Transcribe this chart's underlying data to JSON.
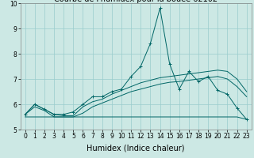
{
  "xlabel": "Humidex (Indice chaleur)",
  "ylabel": "",
  "bg_color": "#cce8e4",
  "line_color": "#006666",
  "grid_color": "#99cccc",
  "xlim": [
    -0.5,
    23.5
  ],
  "ylim": [
    5,
    10
  ],
  "yticks": [
    5,
    6,
    7,
    8,
    9,
    10
  ],
  "xticks": [
    0,
    1,
    2,
    3,
    4,
    5,
    6,
    7,
    8,
    9,
    10,
    11,
    12,
    13,
    14,
    15,
    16,
    17,
    18,
    19,
    20,
    21,
    22,
    23
  ],
  "line1_x": [
    0,
    1,
    2,
    3,
    4,
    5,
    6,
    7,
    8,
    9,
    10,
    11,
    12,
    13,
    14,
    15,
    16,
    17,
    18,
    19,
    20,
    21,
    22,
    23
  ],
  "line1_y": [
    5.6,
    6.0,
    5.8,
    5.6,
    5.6,
    5.7,
    6.0,
    6.3,
    6.3,
    6.5,
    6.6,
    7.1,
    7.5,
    8.4,
    9.8,
    7.6,
    6.6,
    7.3,
    6.9,
    7.1,
    6.55,
    6.4,
    5.85,
    5.4
  ],
  "line2_x": [
    0,
    1,
    2,
    3,
    4,
    5,
    6,
    7,
    8,
    9,
    10,
    11,
    12,
    13,
    14,
    15,
    16,
    17,
    18,
    19,
    20,
    21,
    22,
    23
  ],
  "line2_y": [
    5.6,
    6.0,
    5.8,
    5.6,
    5.55,
    5.55,
    5.9,
    6.1,
    6.2,
    6.4,
    6.55,
    6.7,
    6.85,
    6.95,
    7.05,
    7.1,
    7.15,
    7.2,
    7.25,
    7.3,
    7.35,
    7.3,
    7.0,
    6.5
  ],
  "line3_x": [
    0,
    1,
    2,
    3,
    4,
    5,
    6,
    7,
    8,
    9,
    10,
    11,
    12,
    13,
    14,
    15,
    16,
    17,
    18,
    19,
    20,
    21,
    22,
    23
  ],
  "line3_y": [
    5.6,
    5.9,
    5.75,
    5.5,
    5.5,
    5.5,
    5.65,
    5.9,
    6.05,
    6.2,
    6.35,
    6.5,
    6.6,
    6.7,
    6.8,
    6.87,
    6.9,
    6.95,
    7.0,
    7.05,
    7.1,
    7.0,
    6.7,
    6.3
  ],
  "line4_x": [
    0,
    1,
    2,
    3,
    4,
    5,
    6,
    7,
    8,
    9,
    10,
    11,
    12,
    13,
    14,
    15,
    16,
    17,
    18,
    19,
    20,
    21,
    22,
    23
  ],
  "line4_y": [
    5.5,
    5.5,
    5.5,
    5.5,
    5.5,
    5.5,
    5.5,
    5.5,
    5.5,
    5.5,
    5.5,
    5.5,
    5.5,
    5.5,
    5.5,
    5.5,
    5.5,
    5.5,
    5.5,
    5.5,
    5.5,
    5.5,
    5.5,
    5.4
  ],
  "title_fontsize": 7,
  "label_fontsize": 7,
  "tick_fontsize": 5.5
}
